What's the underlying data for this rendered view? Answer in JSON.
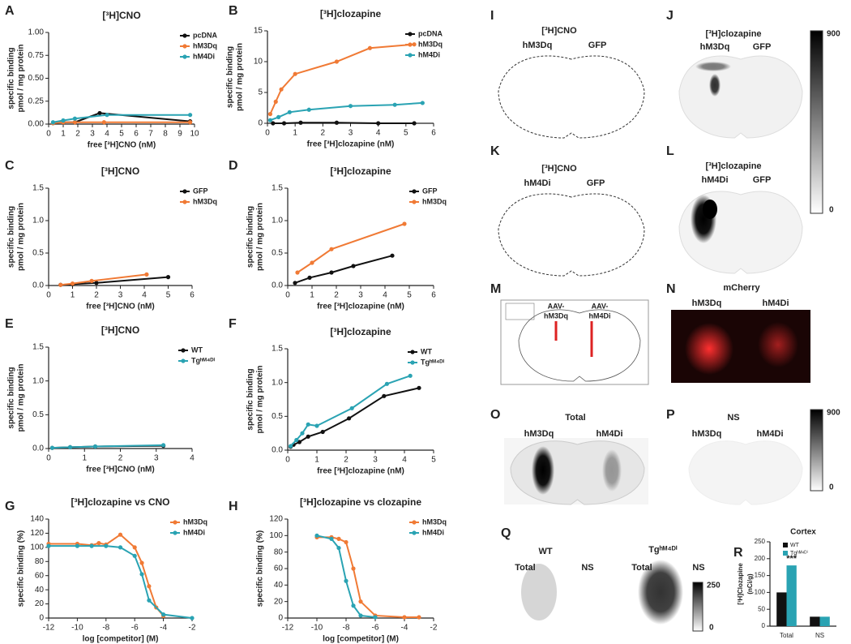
{
  "chart_data": [
    {
      "panel": "A",
      "type": "line",
      "title": "[³H]CNO",
      "xlabel": "free [³H]CNO (nM)",
      "ylabel": [
        "specific binding",
        "pmol / mg protein"
      ],
      "xlim": [
        0,
        10
      ],
      "xticks": [
        0,
        1,
        2,
        3,
        4,
        5,
        6,
        7,
        8,
        9,
        10
      ],
      "ylim": [
        0,
        1
      ],
      "yticks": [
        {
          "value": 0,
          "label": "0.00"
        },
        {
          "value": 0.25,
          "label": "0.25"
        },
        {
          "value": 0.5,
          "label": "0.50"
        },
        {
          "value": 0.75,
          "label": "0.75"
        },
        {
          "value": 1,
          "label": "1.00"
        }
      ],
      "series": [
        {
          "name": "pcDNA",
          "color": "#111111",
          "x": [
            0.3,
            1,
            1.8,
            3.5,
            9.7
          ],
          "values": [
            0.01,
            0.02,
            0.02,
            0.12,
            0.03
          ]
        },
        {
          "name": "hM3Dq",
          "color": "#f07a35",
          "x": [
            0.3,
            1,
            1.8,
            3.8,
            9.7
          ],
          "values": [
            0.01,
            0.02,
            0.02,
            0.02,
            0.02
          ]
        },
        {
          "name": "hM4Di",
          "color": "#2aa3b3",
          "x": [
            0.3,
            1,
            1.8,
            4,
            9.7
          ],
          "values": [
            0.02,
            0.04,
            0.06,
            0.1,
            0.1
          ]
        }
      ]
    },
    {
      "panel": "B",
      "type": "line",
      "title": "[³H]clozapine",
      "xlabel": "free [³H]clozapine (nM)",
      "ylabel": [
        "specific binding",
        "pmol / mg protein"
      ],
      "xlim": [
        0,
        6
      ],
      "xticks": [
        0,
        1,
        2,
        3,
        4,
        5,
        6
      ],
      "ylim": [
        0,
        15
      ],
      "yticks": [
        0,
        5,
        10,
        15
      ],
      "series": [
        {
          "name": "pcDNA",
          "color": "#111111",
          "x": [
            0.2,
            0.6,
            1.2,
            2.5,
            4,
            5.3
          ],
          "values": [
            0,
            0,
            0.1,
            0.1,
            0,
            0
          ]
        },
        {
          "name": "hM3Dq",
          "color": "#f07a35",
          "x": [
            0.1,
            0.3,
            0.5,
            1,
            2.5,
            3.7,
            5.3
          ],
          "values": [
            1.5,
            3.5,
            5.5,
            8,
            10,
            12.2,
            12.8
          ]
        },
        {
          "name": "hM4Di",
          "color": "#2aa3b3",
          "x": [
            0.1,
            0.4,
            0.8,
            1.5,
            3,
            4.6,
            5.6
          ],
          "values": [
            0.5,
            1,
            1.8,
            2.2,
            2.8,
            3,
            3.3
          ]
        }
      ]
    },
    {
      "panel": "C",
      "type": "line",
      "title": "[³H]CNO",
      "xlabel": "free [³H]CNO (nM)",
      "ylabel": [
        "specific binding",
        "pmol / mg protein"
      ],
      "xlim": [
        0,
        6
      ],
      "xticks": [
        0,
        1,
        2,
        3,
        4,
        5,
        6
      ],
      "ylim": [
        0,
        1.5
      ],
      "yticks": [
        {
          "value": 0,
          "label": "0.0"
        },
        {
          "value": 0.5,
          "label": "0.5"
        },
        {
          "value": 1,
          "label": "1.0"
        },
        {
          "value": 1.5,
          "label": "1.5"
        }
      ],
      "series": [
        {
          "name": "GFP",
          "color": "#111111",
          "x": [
            0.5,
            1,
            2,
            5
          ],
          "values": [
            0.01,
            0.02,
            0.04,
            0.13
          ]
        },
        {
          "name": "hM3Dq",
          "color": "#f07a35",
          "x": [
            0.5,
            1,
            1.8,
            4.1
          ],
          "values": [
            0.01,
            0.03,
            0.07,
            0.17
          ]
        }
      ]
    },
    {
      "panel": "D",
      "type": "line",
      "title": "[³H]clozapine",
      "xlabel": "free [³H]clozapine (nM)",
      "ylabel": [
        "specific binding",
        "pmol / mg protein"
      ],
      "xlim": [
        0,
        6
      ],
      "xticks": [
        0,
        1,
        2,
        3,
        4,
        5,
        6
      ],
      "ylim": [
        0,
        1.5
      ],
      "yticks": [
        {
          "value": 0,
          "label": "0.0"
        },
        {
          "value": 0.5,
          "label": "0.5"
        },
        {
          "value": 1,
          "label": "1.0"
        },
        {
          "value": 1.5,
          "label": "1.5"
        }
      ],
      "series": [
        {
          "name": "GFP",
          "color": "#111111",
          "x": [
            0.3,
            0.9,
            1.8,
            2.7,
            4.3
          ],
          "values": [
            0.04,
            0.12,
            0.2,
            0.3,
            0.46
          ]
        },
        {
          "name": "hM3Dq",
          "color": "#f07a35",
          "x": [
            0.4,
            1,
            1.8,
            4.8
          ],
          "values": [
            0.2,
            0.35,
            0.56,
            0.95
          ]
        }
      ]
    },
    {
      "panel": "E",
      "type": "line",
      "title": "[³H]CNO",
      "xlabel": "free [³H]CNO (nM)",
      "ylabel": [
        "specific binding",
        "pmol / mg protein"
      ],
      "xlim": [
        0,
        4
      ],
      "xticks": [
        0,
        1,
        2,
        3,
        4
      ],
      "ylim": [
        0,
        1.5
      ],
      "yticks": [
        {
          "value": 0,
          "label": "0.0"
        },
        {
          "value": 0.5,
          "label": "0.5"
        },
        {
          "value": 1,
          "label": "1.0"
        },
        {
          "value": 1.5,
          "label": "1.5"
        }
      ],
      "series": [
        {
          "name": "WT",
          "color": "#111111",
          "x": [
            0.1,
            0.6,
            1.3,
            3.2
          ],
          "values": [
            0.01,
            0.02,
            0.03,
            0.04
          ]
        },
        {
          "name": "Tgʰᴹ⁴ᴰⁱ",
          "color": "#2aa3b3",
          "x": [
            0.1,
            0.6,
            1.3,
            3.2
          ],
          "values": [
            0.01,
            0.02,
            0.03,
            0.05
          ]
        }
      ]
    },
    {
      "panel": "F",
      "type": "line",
      "title": "[³H]clozapine",
      "xlabel": "free [³H]clozapine (nM)",
      "ylabel": [
        "specific binding",
        "pmol / mg protein"
      ],
      "xlim": [
        0,
        5
      ],
      "xticks": [
        0,
        1,
        2,
        3,
        4,
        5
      ],
      "ylim": [
        0,
        1.5
      ],
      "yticks": [
        {
          "value": 0,
          "label": "0.0"
        },
        {
          "value": 0.5,
          "label": "0.5"
        },
        {
          "value": 1,
          "label": "1.0"
        },
        {
          "value": 1.5,
          "label": "1.5"
        }
      ],
      "series": [
        {
          "name": "WT",
          "color": "#111111",
          "x": [
            0.1,
            0.2,
            0.4,
            0.7,
            1.2,
            2.1,
            3.3,
            4.5
          ],
          "values": [
            0.05,
            0.08,
            0.12,
            0.2,
            0.27,
            0.47,
            0.8,
            0.92
          ]
        },
        {
          "name": "Tgʰᴹ⁴ᴰⁱ",
          "color": "#2aa3b3",
          "x": [
            0.1,
            0.3,
            0.5,
            0.7,
            1,
            2.2,
            3.4,
            4.2
          ],
          "values": [
            0.06,
            0.15,
            0.25,
            0.38,
            0.36,
            0.62,
            0.98,
            1.1
          ]
        }
      ]
    },
    {
      "panel": "G",
      "type": "line",
      "title": "[³H]clozapine vs CNO",
      "xlabel": "log [competitor] (M)",
      "ylabel": [
        "specific binding (%)"
      ],
      "xlim": [
        -12,
        -2
      ],
      "xticks": [
        -12,
        -10,
        -8,
        -6,
        -4,
        -2
      ],
      "ylim": [
        0,
        140
      ],
      "yticks": [
        0,
        20,
        40,
        60,
        80,
        100,
        120,
        140
      ],
      "series": [
        {
          "name": "hM3Dq",
          "color": "#f07a35",
          "x": [
            -12,
            -10,
            -9,
            -8.5,
            -8,
            -7,
            -6,
            -5.5,
            -5,
            -4.5,
            -4
          ],
          "values": [
            105,
            105,
            103,
            106,
            104,
            118,
            100,
            78,
            45,
            15,
            3
          ]
        },
        {
          "name": "hM4Di",
          "color": "#2aa3b3",
          "x": [
            -12,
            -10,
            -9,
            -8,
            -7,
            -6,
            -5.5,
            -5,
            -4,
            -2
          ],
          "values": [
            102,
            102,
            102,
            102,
            100,
            88,
            62,
            25,
            5,
            0
          ]
        }
      ]
    },
    {
      "panel": "H",
      "type": "line",
      "title": "[³H]clozapine vs clozapine",
      "xlabel": "log [competitor] (M)",
      "ylabel": [
        "specific binding (%)"
      ],
      "xlim": [
        -12,
        -2
      ],
      "xticks": [
        -12,
        -10,
        -8,
        -6,
        -4,
        -2
      ],
      "ylim": [
        0,
        120
      ],
      "yticks": [
        0,
        20,
        40,
        60,
        80,
        100,
        120
      ],
      "series": [
        {
          "name": "hM3Dq",
          "color": "#f07a35",
          "x": [
            -10,
            -9,
            -8.5,
            -8,
            -7.5,
            -7,
            -6,
            -4,
            -3
          ],
          "values": [
            98,
            98,
            96,
            92,
            60,
            20,
            3,
            1,
            1
          ]
        },
        {
          "name": "hM4Di",
          "color": "#2aa3b3",
          "x": [
            -10,
            -9,
            -8.5,
            -8,
            -7.5,
            -7,
            -6
          ],
          "values": [
            100,
            96,
            85,
            45,
            15,
            3,
            1
          ]
        }
      ]
    },
    {
      "panel": "R",
      "type": "bar",
      "title": "Cortex",
      "ylabel": [
        "[³H]Clozapine",
        "(nCi/g)"
      ],
      "categories": [
        "Total",
        "NS"
      ],
      "ylim": [
        0,
        250
      ],
      "yticks": [
        0,
        50,
        100,
        150,
        200,
        250
      ],
      "annotation": "***",
      "series": [
        {
          "name": "WT",
          "color": "#111111",
          "values": [
            100,
            28
          ]
        },
        {
          "name": "Tgʰᴹ⁴ᴰⁱ",
          "color": "#2aa3b3",
          "values": [
            180,
            28
          ]
        }
      ]
    }
  ],
  "images": [
    {
      "panel": "I",
      "texts": [
        "[³H]CNO",
        "hM3Dq",
        "GFP"
      ]
    },
    {
      "panel": "J",
      "texts": [
        "[³H]clozapine",
        "hM3Dq",
        "GFP"
      ]
    },
    {
      "panel": "K",
      "texts": [
        "[³H]CNO",
        "hM4Di",
        "GFP"
      ]
    },
    {
      "panel": "L",
      "texts": [
        "[³H]clozapine",
        "hM4Di",
        "GFP"
      ]
    },
    {
      "panel": "M",
      "texts": [
        "AAV-",
        "hM3Dq",
        "AAV-",
        "hM4Di"
      ]
    },
    {
      "panel": "N",
      "texts": [
        "mCherry",
        "hM3Dq",
        "hM4Di"
      ]
    },
    {
      "panel": "O",
      "texts": [
        "Total",
        "hM3Dq",
        "hM4Di"
      ]
    },
    {
      "panel": "P",
      "texts": [
        "NS",
        "hM3Dq",
        "hM4Di"
      ]
    },
    {
      "panel": "Q",
      "texts": [
        "WT",
        "Total",
        "NS",
        "Tgʰᴹ⁴ᴰⁱ",
        "Total",
        "NS"
      ]
    }
  ],
  "colorbars": [
    {
      "max": 900,
      "min": 0
    },
    {
      "max": 900,
      "min": 0
    },
    {
      "max": 250,
      "min": 0
    }
  ]
}
